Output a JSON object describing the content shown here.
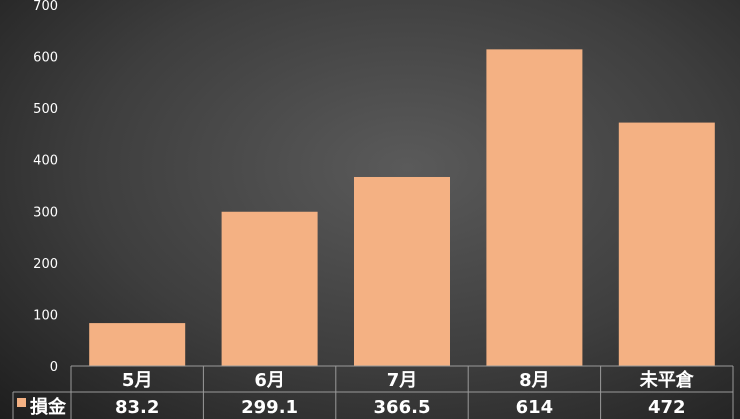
{
  "chart_data": {
    "type": "bar",
    "categories": [
      "5月",
      "6月",
      "7月",
      "8月",
      "未平倉"
    ],
    "series": [
      {
        "name": "損金",
        "values": [
          83.2,
          299.1,
          366.5,
          614,
          472
        ],
        "labels": [
          "83.2",
          "299.1",
          "366.5",
          "614",
          "472"
        ],
        "color": "#f4b183"
      }
    ],
    "ylim": [
      0,
      700
    ],
    "yticks": [
      0,
      100,
      200,
      300,
      400,
      500,
      600,
      700
    ],
    "grid": false,
    "legend": "data-table",
    "data_table": true
  }
}
